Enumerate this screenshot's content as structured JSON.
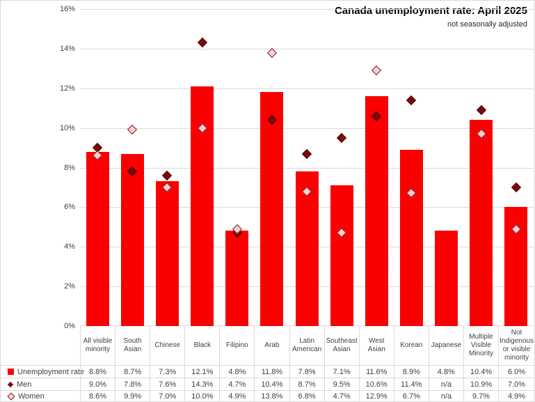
{
  "header": {
    "title": "Canada unemployment rate: April 2025",
    "subtitle": "not seasonally adjusted"
  },
  "colors": {
    "bar": "#fb0000",
    "men_fill": "#7a0a0a",
    "men_border": "#4d0404",
    "women_fill": "#f8cdd0",
    "women_border": "#7a2228",
    "gridline": "#d9d9d9",
    "axis_text": "#404040",
    "title_text": "#000000"
  },
  "axis": {
    "ymin": 0,
    "ymax": 16,
    "tick_step": 2,
    "tick_labels": [
      "0%",
      "2%",
      "4%",
      "6%",
      "8%",
      "10%",
      "12%",
      "14%",
      "16%"
    ]
  },
  "chart_data": {
    "type": "bar",
    "title": "Canada unemployment rate: April 2025",
    "subtitle": "not seasonally adjusted",
    "ylim": [
      0,
      16
    ],
    "grid": true,
    "legend_position": "bottom-table",
    "categories": [
      "All visible minority",
      "South Asian",
      "Chinese",
      "Black",
      "Filipino",
      "Arab",
      "Latin American",
      "Southeast Asian",
      "West Asian",
      "Korean",
      "Japanese",
      "Multiple Visible Minority",
      "Not Indigenous or visible minority"
    ],
    "series": [
      {
        "name": "Unemployment rate",
        "type": "bar",
        "marker": "square",
        "color": "#fb0000",
        "values": [
          8.8,
          8.7,
          7.3,
          12.1,
          4.8,
          11.8,
          7.8,
          7.1,
          11.6,
          8.9,
          4.8,
          10.4,
          6.0
        ]
      },
      {
        "name": "Men",
        "type": "scatter",
        "marker": "diamond-dark",
        "color": "#7a0a0a",
        "values": [
          9.0,
          7.8,
          7.6,
          14.3,
          4.7,
          10.4,
          8.7,
          9.5,
          10.6,
          11.4,
          null,
          10.9,
          7.0
        ]
      },
      {
        "name": "Women",
        "type": "scatter",
        "marker": "diamond-light",
        "color": "#f8cdd0",
        "values": [
          8.6,
          9.9,
          7.0,
          10.0,
          4.9,
          13.8,
          6.8,
          4.7,
          12.9,
          6.7,
          null,
          9.7,
          4.9
        ]
      }
    ]
  },
  "table": {
    "na_text": "n/a",
    "rows": [
      [
        "8.8%",
        "8.7%",
        "7.3%",
        "12.1%",
        "4.8%",
        "11.8%",
        "7.8%",
        "7.1%",
        "11.6%",
        "8.9%",
        "4.8%",
        "10.4%",
        "6.0%"
      ],
      [
        "9.0%",
        "7.8%",
        "7.6%",
        "14.3%",
        "4.7%",
        "10.4%",
        "8.7%",
        "9.5%",
        "10.6%",
        "11.4%",
        "n/a",
        "10.9%",
        "7.0%"
      ],
      [
        "8.6%",
        "9.9%",
        "7.0%",
        "10.0%",
        "4.9%",
        "13.8%",
        "6.8%",
        "4.7%",
        "12.9%",
        "6.7%",
        "n/a",
        "9.7%",
        "4.9%"
      ]
    ]
  }
}
